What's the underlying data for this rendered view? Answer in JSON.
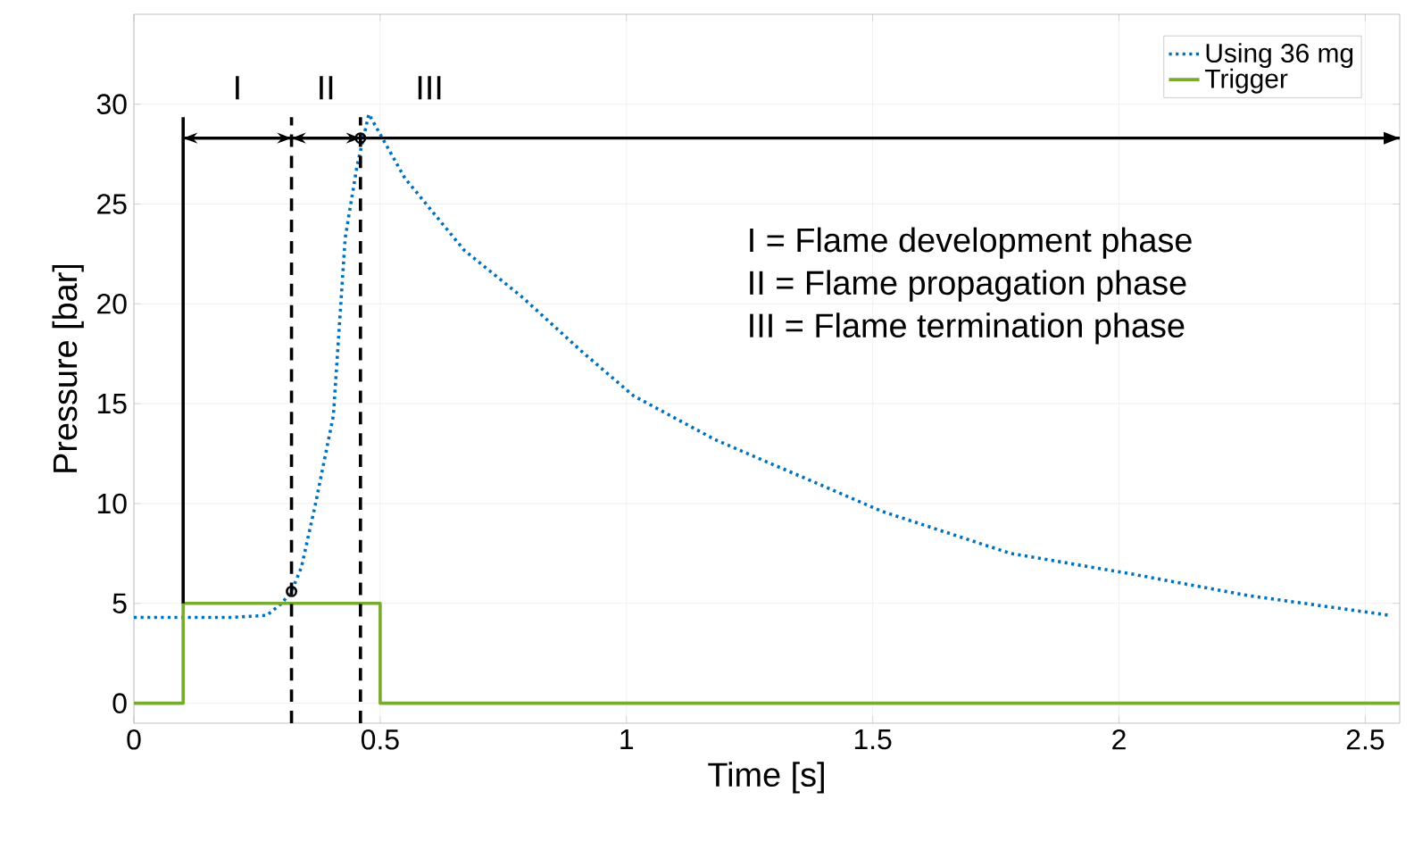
{
  "chart_data": {
    "type": "line",
    "xlabel": "Time [s]",
    "ylabel": "Pressure [bar]",
    "xlim": [
      0,
      2.57
    ],
    "ylim": [
      -1,
      34.5
    ],
    "xticks": [
      0,
      0.5,
      1,
      1.5,
      2,
      2.5
    ],
    "yticks": [
      0,
      5,
      10,
      15,
      20,
      25,
      30
    ],
    "grid": true,
    "legend": "top right",
    "series": [
      {
        "name": "Using 36 mg",
        "color": "#0072bd",
        "line_style": "dotted",
        "x": [
          0,
          0.1,
          0.2,
          0.27,
          0.3,
          0.32,
          0.34,
          0.368,
          0.405,
          0.429,
          0.453,
          0.477,
          0.55,
          0.67,
          0.79,
          0.91,
          1.014,
          1.18,
          1.52,
          1.78,
          2.02,
          2.26,
          2.55
        ],
        "values": [
          4.3,
          4.3,
          4.3,
          4.4,
          5.0,
          5.6,
          6.8,
          9.9,
          14.4,
          23.3,
          26.9,
          29.5,
          26.3,
          22.7,
          20.3,
          17.6,
          15.4,
          13.2,
          9.6,
          7.5,
          6.5,
          5.4,
          4.4
        ]
      },
      {
        "name": "Trigger",
        "color": "#77ac30",
        "line_style": "solid",
        "x": [
          0,
          0.1,
          0.1,
          0.5,
          0.5,
          2.57
        ],
        "values": [
          0,
          0,
          5,
          5,
          0,
          0
        ]
      },
      {
        "type": "scatter",
        "color": "#000000",
        "marker": "circle",
        "x": [
          0.32,
          0.46
        ],
        "values": [
          5.6,
          28.3
        ]
      }
    ],
    "ref_lines": [
      {
        "axis": "x",
        "value": 0.1,
        "line_style": "solid",
        "color": "#000000"
      },
      {
        "axis": "x",
        "value": 0.32,
        "line_style": "dashed",
        "color": "#000000"
      },
      {
        "axis": "x",
        "value": 0.46,
        "line_style": "dashed",
        "color": "#000000"
      },
      {
        "axis": "y",
        "value": 28.3,
        "line_style": "solid",
        "color": "#000000"
      }
    ],
    "annotations": [
      "I",
      "II",
      "III",
      "I = Flame development phase",
      "II = Flame propagation phase",
      "III = Flame termination phase"
    ]
  }
}
